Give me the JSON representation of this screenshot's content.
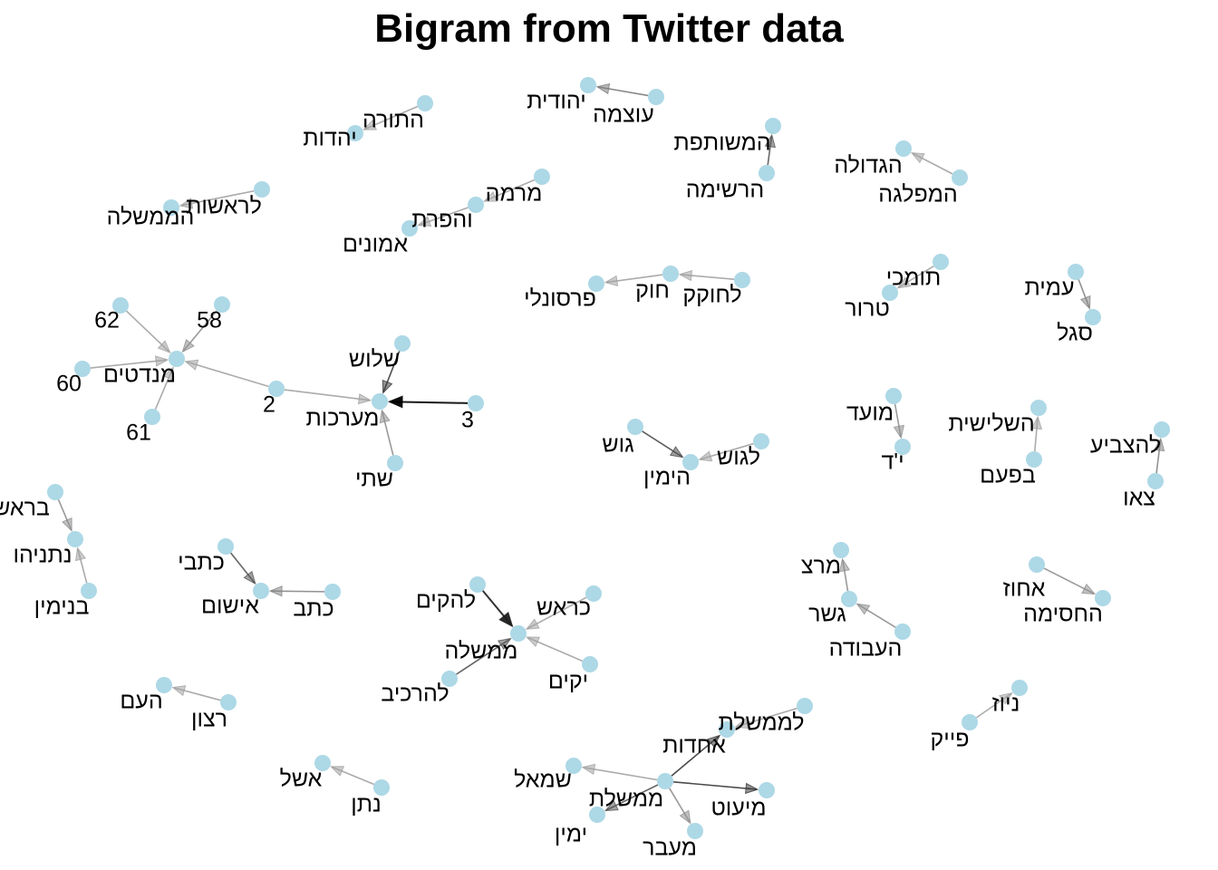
{
  "title": "Bigram from Twitter data",
  "colors": {
    "background": "#ffffff",
    "node": "#add8e6",
    "text": "#000000",
    "edge_dark": "#000000",
    "edge_light": "#bfbfbf"
  },
  "nodes": [
    {
      "id": "yahadut",
      "label": "יהדות"
    },
    {
      "id": "hatora",
      "label": "התורה"
    },
    {
      "id": "leroshut",
      "label": "לראשות"
    },
    {
      "id": "hamemshala",
      "label": "הממשלה"
    },
    {
      "id": "yehudit",
      "label": "יהודית"
    },
    {
      "id": "otzma",
      "label": "עוצמה"
    },
    {
      "id": "hameshutefet",
      "label": "המשותפת"
    },
    {
      "id": "hareshima",
      "label": "הרשימה"
    },
    {
      "id": "hagdola",
      "label": "הגדולה"
    },
    {
      "id": "hamiflaga",
      "label": "המפלגה"
    },
    {
      "id": "mirma",
      "label": "מרמה"
    },
    {
      "id": "vehafarat",
      "label": "והפרת"
    },
    {
      "id": "emunim",
      "label": "אמונים"
    },
    {
      "id": "personali",
      "label": "פרסונלי"
    },
    {
      "id": "hok",
      "label": "חוק"
    },
    {
      "id": "lahokek",
      "label": "לחוקק"
    },
    {
      "id": "tomchei",
      "label": "תומכי"
    },
    {
      "id": "teror",
      "label": "טרור"
    },
    {
      "id": "amit",
      "label": "עמית"
    },
    {
      "id": "segal",
      "label": "סגל"
    },
    {
      "id": "n62",
      "label": "62"
    },
    {
      "id": "n58",
      "label": "58"
    },
    {
      "id": "mandatim",
      "label": "מנדטים"
    },
    {
      "id": "n60",
      "label": "60"
    },
    {
      "id": "n61",
      "label": "61"
    },
    {
      "id": "n2",
      "label": "2"
    },
    {
      "id": "shalosh",
      "label": "שלוש"
    },
    {
      "id": "maarachot",
      "label": "מערכות"
    },
    {
      "id": "n3",
      "label": "3"
    },
    {
      "id": "shtei",
      "label": "שתי"
    },
    {
      "id": "moed",
      "label": "מועד"
    },
    {
      "id": "yod",
      "label": "י'ד"
    },
    {
      "id": "hashlishit",
      "label": "השלישית"
    },
    {
      "id": "bepaam",
      "label": "בפעם"
    },
    {
      "id": "lehatzbia",
      "label": "להצביע"
    },
    {
      "id": "tzeu",
      "label": "צאו"
    },
    {
      "id": "gush",
      "label": "גוש"
    },
    {
      "id": "lagush",
      "label": "לגוש"
    },
    {
      "id": "hayamin",
      "label": "הימין"
    },
    {
      "id": "berosh",
      "label": "בראש"
    },
    {
      "id": "netanyahu",
      "label": "נתניהו"
    },
    {
      "id": "binyamin",
      "label": "בנימין"
    },
    {
      "id": "kitvei",
      "label": "כתבי"
    },
    {
      "id": "ktav",
      "label": "כתב"
    },
    {
      "id": "ishum",
      "label": "אישום"
    },
    {
      "id": "lehakim",
      "label": "להקים"
    },
    {
      "id": "kerosh",
      "label": "כראש"
    },
    {
      "id": "memshala",
      "label": "ממשלה"
    },
    {
      "id": "yakim",
      "label": "יקים"
    },
    {
      "id": "leharkiv",
      "label": "להרכיב"
    },
    {
      "id": "meretz",
      "label": "מרצ"
    },
    {
      "id": "gesher",
      "label": "גשר"
    },
    {
      "id": "haavoda",
      "label": "העבודה"
    },
    {
      "id": "achuz",
      "label": "אחוז"
    },
    {
      "id": "hachasima",
      "label": "החסימה"
    },
    {
      "id": "haam",
      "label": "העם"
    },
    {
      "id": "ratzon",
      "label": "רצון"
    },
    {
      "id": "news",
      "label": "ניוז"
    },
    {
      "id": "fake",
      "label": "פייק"
    },
    {
      "id": "lememshelet",
      "label": "לממשלת"
    },
    {
      "id": "achdut",
      "label": "אחדות"
    },
    {
      "id": "smol",
      "label": "שמאל"
    },
    {
      "id": "memshelet",
      "label": "ממשלת"
    },
    {
      "id": "miut",
      "label": "מיעוט"
    },
    {
      "id": "yamin",
      "label": "ימין"
    },
    {
      "id": "maavar",
      "label": "מעבר"
    },
    {
      "id": "eshel",
      "label": "אשל"
    },
    {
      "id": "natan",
      "label": "נתן"
    }
  ],
  "edges": [
    {
      "from": "hatora",
      "to": "yahadut",
      "weight": 0.15
    },
    {
      "from": "leroshut",
      "to": "hamemshala",
      "weight": 0.15
    },
    {
      "from": "otzma",
      "to": "yehudit",
      "weight": 0.35
    },
    {
      "from": "hareshima",
      "to": "hameshutefet",
      "weight": 0.55
    },
    {
      "from": "hamiflaga",
      "to": "hagdola",
      "weight": 0.15
    },
    {
      "from": "mirma",
      "to": "vehafarat",
      "weight": 0.15
    },
    {
      "from": "vehafarat",
      "to": "emunim",
      "weight": 0.15
    },
    {
      "from": "hok",
      "to": "personali",
      "weight": 0.15
    },
    {
      "from": "lahokek",
      "to": "hok",
      "weight": 0.15
    },
    {
      "from": "tomchei",
      "to": "teror",
      "weight": 0.15
    },
    {
      "from": "amit",
      "to": "segal",
      "weight": 0.3
    },
    {
      "from": "n62",
      "to": "mandatim",
      "weight": 0.15
    },
    {
      "from": "n58",
      "to": "mandatim",
      "weight": 0.25
    },
    {
      "from": "n60",
      "to": "mandatim",
      "weight": 0.15
    },
    {
      "from": "n61",
      "to": "mandatim",
      "weight": 0.15
    },
    {
      "from": "n2",
      "to": "mandatim",
      "weight": 0.15
    },
    {
      "from": "shalosh",
      "to": "maarachot",
      "weight": 0.7
    },
    {
      "from": "n3",
      "to": "maarachot",
      "weight": 1.0
    },
    {
      "from": "shtei",
      "to": "maarachot",
      "weight": 0.25
    },
    {
      "from": "n2",
      "to": "maarachot",
      "weight": 0.15
    },
    {
      "from": "moed",
      "to": "yod",
      "weight": 0.25
    },
    {
      "from": "bepaam",
      "to": "hashlishit",
      "weight": 0.15
    },
    {
      "from": "tzeu",
      "to": "lehatzbia",
      "weight": 0.3
    },
    {
      "from": "gush",
      "to": "hayamin",
      "weight": 0.6
    },
    {
      "from": "lagush",
      "to": "hayamin",
      "weight": 0.15
    },
    {
      "from": "berosh",
      "to": "netanyahu",
      "weight": 0.25
    },
    {
      "from": "binyamin",
      "to": "netanyahu",
      "weight": 0.15
    },
    {
      "from": "kitvei",
      "to": "ishum",
      "weight": 0.55
    },
    {
      "from": "ktav",
      "to": "ishum",
      "weight": 0.3
    },
    {
      "from": "lehakim",
      "to": "memshala",
      "weight": 0.85
    },
    {
      "from": "kerosh",
      "to": "memshala",
      "weight": 0.15
    },
    {
      "from": "yakim",
      "to": "memshala",
      "weight": 0.15
    },
    {
      "from": "leharkiv",
      "to": "memshala",
      "weight": 0.55
    },
    {
      "from": "gesher",
      "to": "meretz",
      "weight": 0.25
    },
    {
      "from": "haavoda",
      "to": "gesher",
      "weight": 0.25
    },
    {
      "from": "achuz",
      "to": "hachasima",
      "weight": 0.25
    },
    {
      "from": "ratzon",
      "to": "haam",
      "weight": 0.15
    },
    {
      "from": "fake",
      "to": "news",
      "weight": 0.15
    },
    {
      "from": "memshelet",
      "to": "achdut",
      "weight": 0.7
    },
    {
      "from": "lememshelet",
      "to": "achdut",
      "weight": 0.15
    },
    {
      "from": "memshelet",
      "to": "smol",
      "weight": 0.15
    },
    {
      "from": "memshelet",
      "to": "miut",
      "weight": 0.7
    },
    {
      "from": "memshelet",
      "to": "yamin",
      "weight": 0.55
    },
    {
      "from": "memshelet",
      "to": "maavar",
      "weight": 0.25
    },
    {
      "from": "natan",
      "to": "eshel",
      "weight": 0.15
    }
  ]
}
